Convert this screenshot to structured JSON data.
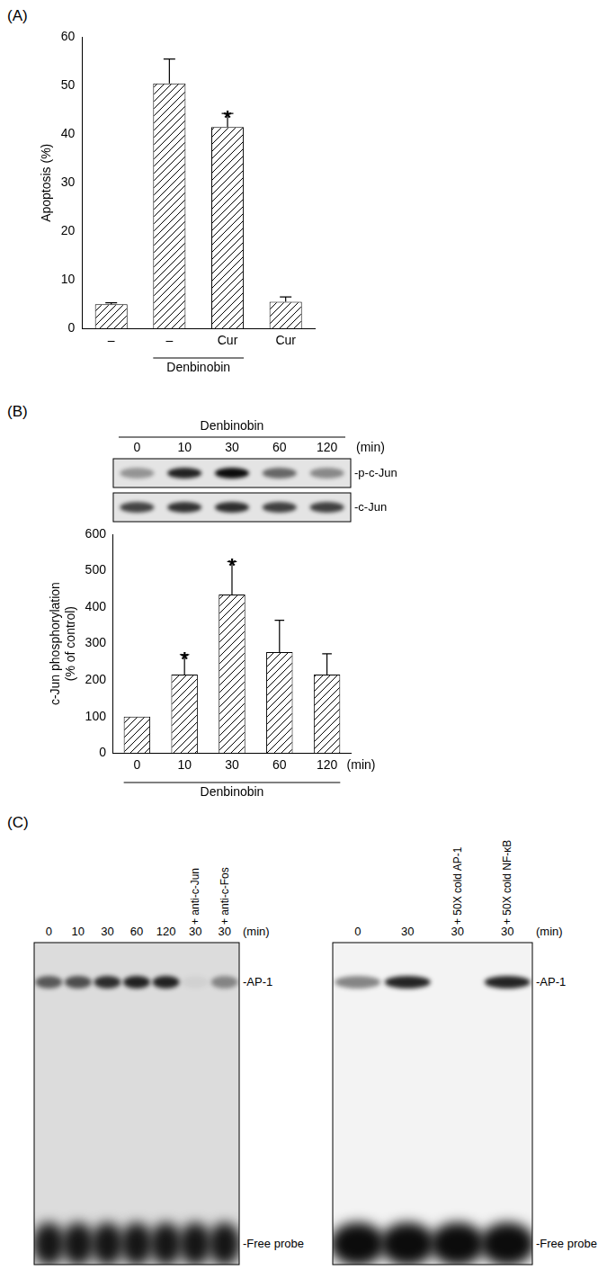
{
  "panel_labels": [
    "(A)",
    "(B)",
    "(C)"
  ],
  "chart_data": [
    {
      "type": "bar",
      "categories": [
        "–",
        "–",
        "Cur",
        "Cur"
      ],
      "values": [
        5,
        50.5,
        41.5,
        5.5
      ],
      "errors": [
        0.3,
        5,
        2.8,
        1
      ],
      "groups": [
        {
          "label": "Denbinobin",
          "from": 1,
          "to": 2
        }
      ],
      "annotations": [
        {
          "text": "*",
          "index": 2
        }
      ],
      "ylabel": "Apoptosis (%)",
      "ylim": [
        0,
        60
      ],
      "yticks": [
        0,
        10,
        20,
        30,
        40,
        50,
        60
      ],
      "color": "#000000",
      "grid": false
    },
    {
      "type": "bar",
      "categories": [
        "0",
        "10",
        "30",
        "60",
        "120"
      ],
      "unit_label": "(min)",
      "values": [
        100,
        215,
        435,
        277,
        215
      ],
      "errors": [
        0,
        55,
        90,
        87,
        57
      ],
      "groups": [
        {
          "label": "Denbinobin",
          "from": 0,
          "to": 4
        }
      ],
      "annotations": [
        {
          "text": "*",
          "index": 1
        },
        {
          "text": "*",
          "index": 2
        }
      ],
      "ylabel": [
        "c-Jun phosphorylation",
        "(% of control)"
      ],
      "ylim": [
        0,
        600
      ],
      "yticks": [
        0,
        100,
        200,
        300,
        400,
        500,
        600
      ],
      "color": "#000000",
      "grid": false,
      "blot": {
        "header": "Denbinobin",
        "lanes": [
          "0",
          "10",
          "30",
          "60",
          "120"
        ],
        "unit": "(min)",
        "bands": [
          {
            "label": "-p-c-Jun",
            "intensity": [
              0.35,
              0.85,
              0.95,
              0.55,
              0.4
            ]
          },
          {
            "label": "-c-Jun",
            "intensity": [
              0.7,
              0.78,
              0.8,
              0.72,
              0.72
            ]
          }
        ]
      }
    }
  ],
  "gels": [
    {
      "unit": "(min)",
      "band_labels": [
        "-AP-1",
        "-Free probe"
      ],
      "lanes": [
        {
          "time": "0",
          "ap1": 0.6,
          "free": 0.9
        },
        {
          "time": "10",
          "ap1": 0.65,
          "free": 0.9
        },
        {
          "time": "30",
          "ap1": 0.8,
          "free": 0.9
        },
        {
          "time": "60",
          "ap1": 0.85,
          "free": 0.9
        },
        {
          "time": "120",
          "ap1": 0.85,
          "free": 0.9
        },
        {
          "time": "30",
          "treatment": "+ anti-c-Jun",
          "ap1": 0.05,
          "free": 0.9
        },
        {
          "time": "30",
          "treatment": "+ anti-c-Fos",
          "ap1": 0.4,
          "free": 0.9
        }
      ]
    },
    {
      "unit": "(min)",
      "band_labels": [
        "-AP-1",
        "-Free probe"
      ],
      "lanes": [
        {
          "time": "0",
          "ap1": 0.45,
          "free": 0.95
        },
        {
          "time": "30",
          "ap1": 0.85,
          "free": 0.95
        },
        {
          "time": "30",
          "treatment": "+ 50X cold AP-1",
          "ap1": 0,
          "free": 0.95
        },
        {
          "time": "30",
          "treatment": "+ 50X cold NF-κB",
          "ap1": 0.85,
          "free": 0.95
        }
      ]
    }
  ]
}
